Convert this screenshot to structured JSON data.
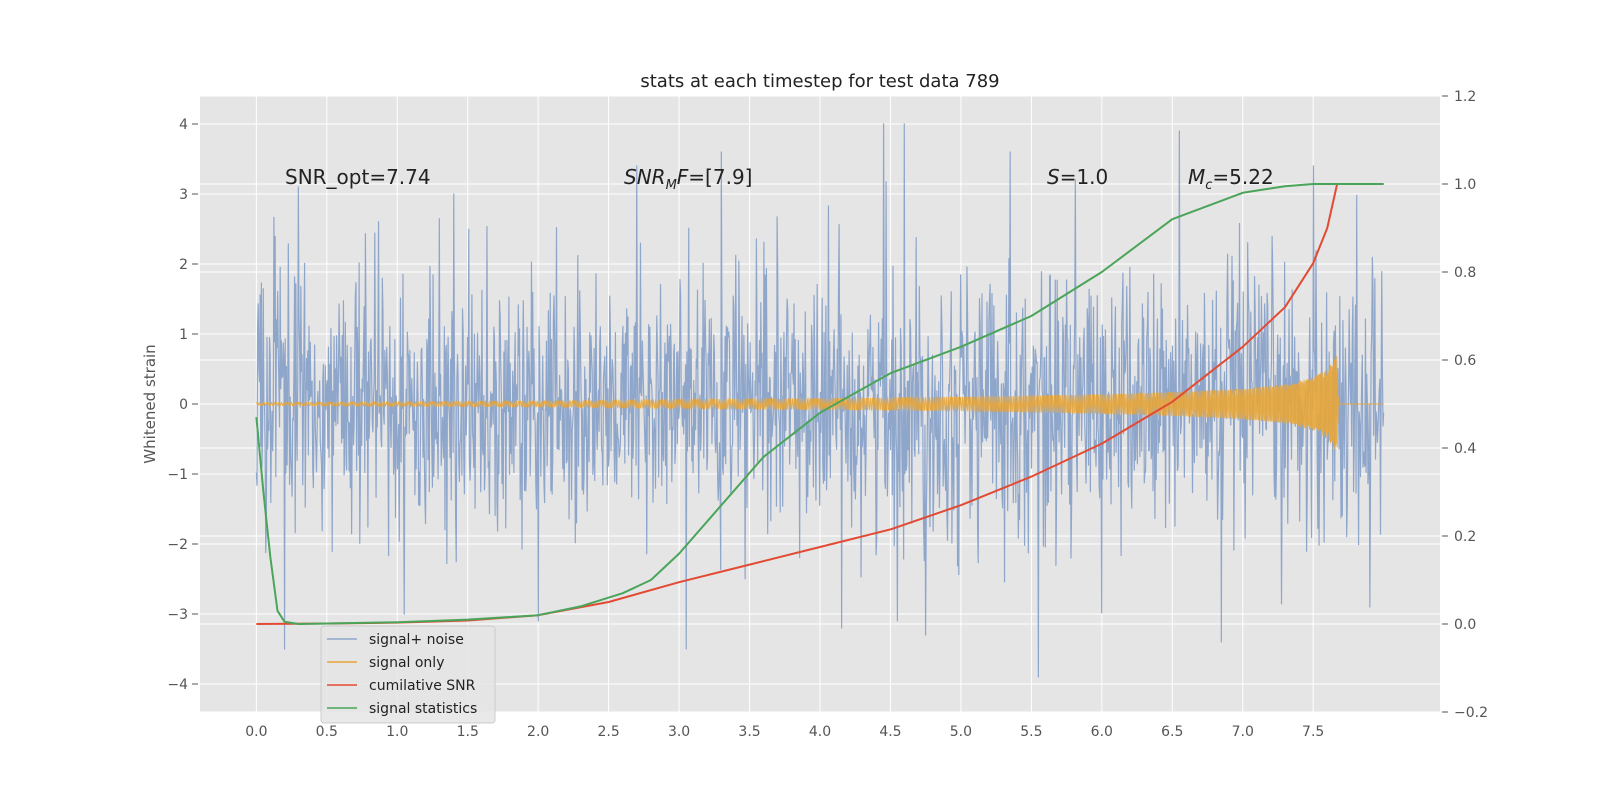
{
  "chart_data": {
    "type": "line",
    "title": "stats at each timestep for test data 789",
    "ylabel": "Whitened strain",
    "xlim": [
      -0.4,
      8.4
    ],
    "ylim": [
      -4.4,
      4.4
    ],
    "y2lim": [
      -0.2,
      1.2
    ],
    "x_ticks": [
      0.0,
      0.5,
      1.0,
      1.5,
      2.0,
      2.5,
      3.0,
      3.5,
      4.0,
      4.5,
      5.0,
      5.5,
      6.0,
      6.5,
      7.0,
      7.5
    ],
    "x_tick_labels": [
      "0.0",
      "0.5",
      "1.0",
      "1.5",
      "2.0",
      "2.5",
      "3.0",
      "3.5",
      "4.0",
      "4.5",
      "5.0",
      "5.5",
      "6.0",
      "6.5",
      "7.0",
      "7.5"
    ],
    "y_ticks": [
      -4,
      -3,
      -2,
      -1,
      0,
      1,
      2,
      3,
      4
    ],
    "y_tick_labels": [
      "−4",
      "−3",
      "−2",
      "−1",
      "0",
      "1",
      "2",
      "3",
      "4"
    ],
    "y2_ticks": [
      -0.2,
      0.0,
      0.2,
      0.4,
      0.6,
      0.8,
      1.0,
      1.2
    ],
    "y2_tick_labels": [
      "−0.2",
      "0.0",
      "0.2",
      "0.4",
      "0.6",
      "0.8",
      "1.0",
      "1.2"
    ],
    "grid": true,
    "legend_position": "lower-left",
    "annotations": {
      "snr_opt": "SNR_opt=7.74",
      "snr_mf_main": "SNR",
      "snr_mf_sub": "M",
      "snr_mf_rest": "F=[7.9]",
      "s_italic": "S",
      "s_rest": "=1.0",
      "mc_main": "M",
      "mc_sub": "c",
      "mc_rest": "=5.22"
    },
    "series": [
      {
        "name": "signal+ noise",
        "axis": "left",
        "x_range": [
          0.0,
          8.0
        ],
        "note_values": "dense noisy trace, typical range about -2.5 to 2.5, extremes near -3.9 and 4.0",
        "peaks_high": [
          [
            0.3,
            3.1
          ],
          [
            1.4,
            3.0
          ],
          [
            2.7,
            3.4
          ],
          [
            3.3,
            3.6
          ],
          [
            4.45,
            4.0
          ],
          [
            4.6,
            4.0
          ],
          [
            5.35,
            3.6
          ],
          [
            6.55,
            3.9
          ],
          [
            7.5,
            3.4
          ]
        ],
        "peaks_low": [
          [
            0.2,
            -3.5
          ],
          [
            1.05,
            -3.0
          ],
          [
            2.0,
            -3.1
          ],
          [
            3.05,
            -3.5
          ],
          [
            4.55,
            -3.1
          ],
          [
            4.75,
            -3.3
          ],
          [
            5.55,
            -3.9
          ],
          [
            6.85,
            -3.4
          ],
          [
            7.9,
            -2.9
          ]
        ]
      },
      {
        "name": "signal only",
        "axis": "left",
        "x": [
          0.0,
          1.0,
          2.0,
          2.5,
          3.0,
          3.5,
          4.0,
          4.5,
          5.0,
          5.5,
          6.0,
          6.5,
          7.0,
          7.3,
          7.5,
          7.6,
          7.67,
          7.68,
          8.0
        ],
        "envelope": [
          0.02,
          0.03,
          0.04,
          0.05,
          0.06,
          0.07,
          0.08,
          0.09,
          0.1,
          0.12,
          0.14,
          0.17,
          0.22,
          0.28,
          0.38,
          0.5,
          0.7,
          0.0,
          0.0
        ]
      },
      {
        "name": "cumilative SNR",
        "axis": "right",
        "x": [
          0.0,
          0.5,
          1.0,
          1.5,
          2.0,
          2.5,
          3.0,
          3.5,
          4.0,
          4.5,
          5.0,
          5.5,
          6.0,
          6.5,
          7.0,
          7.3,
          7.5,
          7.6,
          7.67,
          7.8,
          8.0
        ],
        "values": [
          0.0,
          0.001,
          0.003,
          0.008,
          0.02,
          0.05,
          0.095,
          0.135,
          0.175,
          0.215,
          0.27,
          0.335,
          0.41,
          0.505,
          0.63,
          0.72,
          0.82,
          0.9,
          1.0,
          1.0,
          1.0
        ]
      },
      {
        "name": "signal statistics",
        "axis": "right",
        "x": [
          0.0,
          0.05,
          0.1,
          0.15,
          0.2,
          0.3,
          0.5,
          1.0,
          1.5,
          2.0,
          2.3,
          2.6,
          2.8,
          3.0,
          3.3,
          3.6,
          4.0,
          4.5,
          5.0,
          5.5,
          6.0,
          6.5,
          7.0,
          7.3,
          7.5,
          7.8,
          8.0
        ],
        "values": [
          0.47,
          0.3,
          0.15,
          0.03,
          0.005,
          0.0,
          0.001,
          0.004,
          0.01,
          0.02,
          0.04,
          0.07,
          0.1,
          0.16,
          0.27,
          0.38,
          0.48,
          0.57,
          0.63,
          0.7,
          0.8,
          0.92,
          0.98,
          0.995,
          1.0,
          1.0,
          1.0
        ]
      }
    ]
  },
  "colors": {
    "background": "#e5e5e5",
    "grid": "#ffffff",
    "signal_noise": "#8fa6cb",
    "signal_only": "#e8a63a",
    "cumulative_snr": "#e24a33",
    "signal_statistics": "#4aa55a"
  }
}
